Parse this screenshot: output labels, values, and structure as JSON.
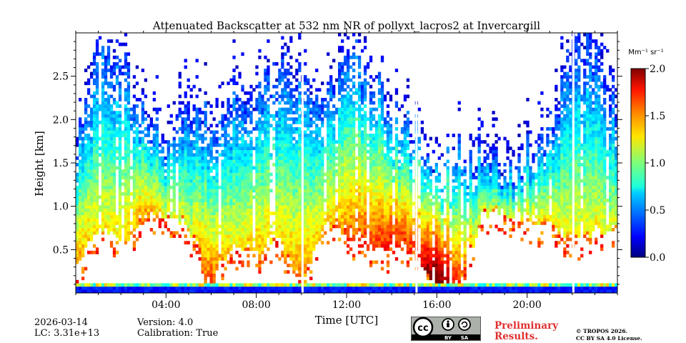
{
  "chart_data": {
    "type": "heatmap",
    "title": "Attenuated Backscatter at 532 nm NR of pollyxt_lacros2 at Invercargill",
    "xlabel": "Time [UTC]",
    "ylabel": "Height [km]",
    "xlim": [
      0,
      24
    ],
    "ylim": [
      0,
      3.0
    ],
    "x_ticks": [
      4,
      8,
      12,
      16,
      20
    ],
    "x_tick_labels": [
      "04:00",
      "08:00",
      "12:00",
      "16:00",
      "20:00"
    ],
    "y_ticks": [
      0.5,
      1.0,
      1.5,
      2.0,
      2.5
    ],
    "y_tick_labels": [
      "0.5",
      "1.0",
      "1.5",
      "2.0",
      "2.5"
    ],
    "colorbar": {
      "unit_label": "Mm⁻¹ sr⁻¹",
      "min": 0.0,
      "max": 2.0,
      "ticks": [
        0.0,
        0.5,
        1.0,
        1.5,
        2.0
      ],
      "tick_labels": [
        "0.0",
        "0.5",
        "1.0",
        "1.5",
        "2.0"
      ],
      "colormap": "jet"
    },
    "data_gaps_hours": [
      10.05,
      15.1,
      22.05
    ],
    "profile_columns": [
      {
        "t": 0.0,
        "bottom": 0.3,
        "top": 1.6,
        "level": 1.2
      },
      {
        "t": 1.0,
        "bottom": 0.75,
        "top": 2.9,
        "level": 1.0
      },
      {
        "t": 2.0,
        "bottom": 0.6,
        "top": 2.9,
        "level": 1.05
      },
      {
        "t": 3.0,
        "bottom": 0.85,
        "top": 2.0,
        "level": 1.2
      },
      {
        "t": 4.0,
        "bottom": 0.9,
        "top": 1.8,
        "level": 1.0
      },
      {
        "t": 5.0,
        "bottom": 0.8,
        "top": 2.2,
        "level": 0.95
      },
      {
        "t": 6.0,
        "bottom": 0.1,
        "top": 2.0,
        "level": 1.3
      },
      {
        "t": 7.0,
        "bottom": 0.55,
        "top": 2.4,
        "level": 1.0
      },
      {
        "t": 8.0,
        "bottom": 0.45,
        "top": 2.2,
        "level": 1.15
      },
      {
        "t": 9.0,
        "bottom": 0.65,
        "top": 2.6,
        "level": 1.05
      },
      {
        "t": 10.0,
        "bottom": 0.1,
        "top": 2.4,
        "level": 1.2
      },
      {
        "t": 11.0,
        "bottom": 0.8,
        "top": 2.4,
        "level": 1.05
      },
      {
        "t": 12.0,
        "bottom": 0.75,
        "top": 2.8,
        "level": 1.2
      },
      {
        "t": 13.0,
        "bottom": 0.55,
        "top": 2.6,
        "level": 1.3
      },
      {
        "t": 14.0,
        "bottom": 0.55,
        "top": 2.0,
        "level": 1.4
      },
      {
        "t": 15.0,
        "bottom": 0.5,
        "top": 1.9,
        "level": 1.3
      },
      {
        "t": 16.0,
        "bottom": 0.1,
        "top": 1.3,
        "level": 1.8
      },
      {
        "t": 17.0,
        "bottom": 0.1,
        "top": 1.6,
        "level": 1.3
      },
      {
        "t": 18.0,
        "bottom": 0.9,
        "top": 1.6,
        "level": 0.95
      },
      {
        "t": 19.0,
        "bottom": 0.95,
        "top": 1.4,
        "level": 0.9
      },
      {
        "t": 20.0,
        "bottom": 0.85,
        "top": 1.6,
        "level": 1.0
      },
      {
        "t": 21.0,
        "bottom": 0.8,
        "top": 1.9,
        "level": 1.05
      },
      {
        "t": 22.0,
        "bottom": 0.65,
        "top": 2.9,
        "level": 1.0
      },
      {
        "t": 23.0,
        "bottom": 0.7,
        "top": 2.9,
        "level": 1.0
      },
      {
        "t": 24.0,
        "bottom": 0.8,
        "top": 2.2,
        "level": 0.95
      }
    ]
  },
  "footer": {
    "date": "2026-03-14",
    "lc": "LC: 3.31e+13",
    "version": "Version: 4.0",
    "calibration": "Calibration: True",
    "preliminary_line1": "Preliminary",
    "preliminary_line2": "Results.",
    "copyright_line1": "© TROPOS 2026.",
    "copyright_line2": "CC BY SA 4.0 License.",
    "license_badge": {
      "cc": "cc",
      "by": "BY",
      "sa": "SA"
    }
  }
}
